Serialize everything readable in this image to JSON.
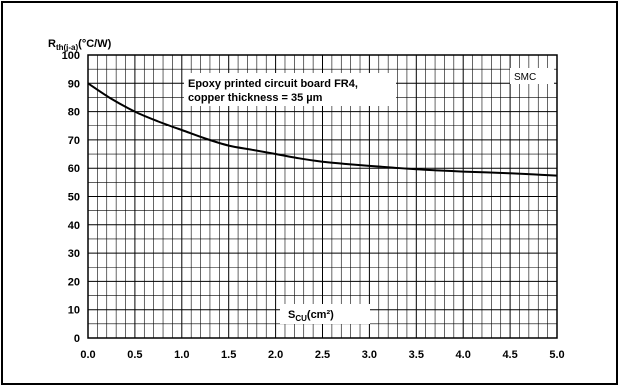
{
  "chart_data": {
    "type": "line",
    "title": "",
    "ylabel": {
      "main": "R",
      "sub": "th(j-a)",
      "rest": "(°C/W)"
    },
    "xlabel": {
      "main": "S",
      "sub": "CU",
      "rest": "(cm²)"
    },
    "xlim": [
      0,
      5
    ],
    "ylim": [
      0,
      100
    ],
    "xticks": [
      "0.0",
      "0.5",
      "1.0",
      "1.5",
      "2.0",
      "2.5",
      "3.0",
      "3.5",
      "4.0",
      "4.5",
      "5.0"
    ],
    "yticks": [
      "0",
      "10",
      "20",
      "30",
      "40",
      "50",
      "60",
      "70",
      "80",
      "90",
      "100"
    ],
    "grid": true,
    "annotation_lines": [
      "Epoxy printed circuit board FR4,",
      "copper thickness = 35 µm"
    ],
    "tag": "SMC",
    "series": [
      {
        "x": [
          0.0,
          0.25,
          0.5,
          0.75,
          1.0,
          1.25,
          1.5,
          1.75,
          2.0,
          2.25,
          2.5,
          2.75,
          3.0,
          3.25,
          3.5,
          3.75,
          4.0,
          4.25,
          4.5,
          4.75,
          5.0
        ],
        "y": [
          90,
          84.5,
          80,
          76.5,
          73.5,
          70.5,
          68,
          66.5,
          65,
          63.5,
          62.3,
          61.5,
          60.8,
          60.2,
          59.6,
          59.2,
          58.8,
          58.5,
          58.2,
          57.8,
          57.4
        ]
      }
    ]
  }
}
